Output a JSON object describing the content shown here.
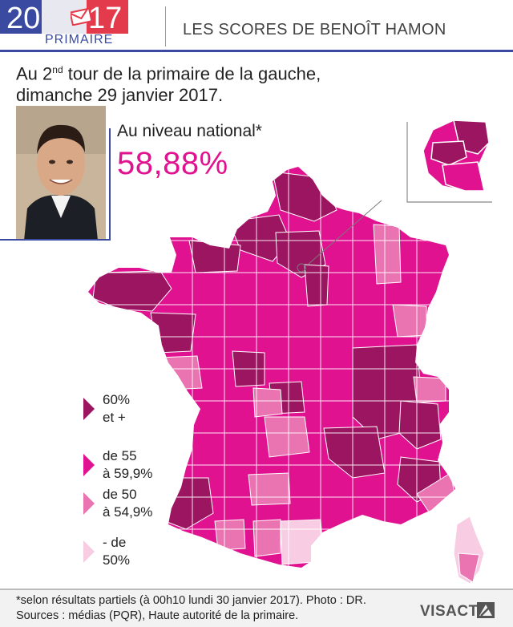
{
  "header": {
    "year_left": "20",
    "year_right": "17",
    "badge": "PRIMAIRE",
    "title": "LES SCORES DE BENOÎT HAMON"
  },
  "subtitle": {
    "line1_pre": "Au 2",
    "line1_sup": "nd",
    "line1_post": " tour de la primaire de la gauche,",
    "line2": "dimanche 29 janvier 2017."
  },
  "national": {
    "label": "Au niveau national*",
    "value": "58,88%"
  },
  "legend": [
    {
      "line1": "60%",
      "line2": "et +",
      "color": "#9b1560"
    },
    {
      "line1": "de 55",
      "line2": "à 59,9%",
      "color": "#e0128f"
    },
    {
      "line1": "de 50",
      "line2": "à 54,9%",
      "color": "#ea73b2"
    },
    {
      "line1": "- de",
      "line2": "50%",
      "color": "#f8cde4"
    }
  ],
  "colors": {
    "cat_60_plus": "#9b1560",
    "cat_55_599": "#e0128f",
    "cat_50_549": "#ea73b2",
    "cat_below_50": "#f8cde4",
    "header_blue": "#3a4aa0",
    "header_red": "#e33b4b"
  },
  "icons": {
    "envelope": "envelope-icon",
    "brand_mark": "visactu-logo-mark"
  },
  "footer": {
    "footnote": "*selon résultats partiels (à 00h10 lundi 30 janvier 2017). Photo : DR.",
    "sources": "Sources : médias (PQR), Haute autorité de la primaire.",
    "brand": "VISACTU"
  }
}
